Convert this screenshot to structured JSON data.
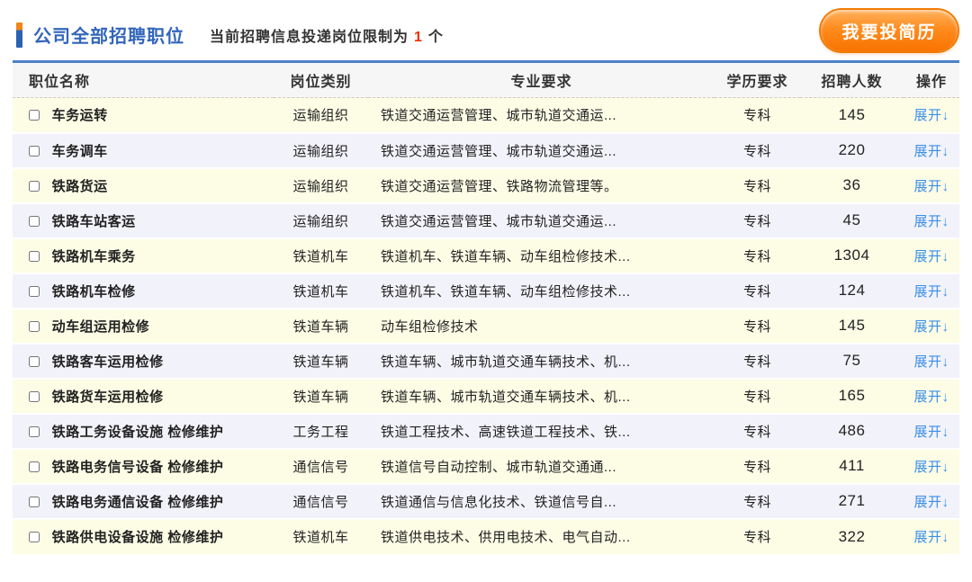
{
  "header": {
    "title": "公司全部招聘职位",
    "subtitle_prefix": "当前招聘信息投递岗位限制为",
    "subtitle_limit": "1",
    "subtitle_suffix": "个",
    "submit_button_label": "我要投简历"
  },
  "table": {
    "columns": [
      "职位名称",
      "岗位类别",
      "专业要求",
      "学历要求",
      "招聘人数",
      "操作"
    ],
    "expand_label": "展开↓",
    "rows": [
      {
        "name": "车务运转",
        "category": "运输组织",
        "majors": "铁道交通运营管理、城市轨道交通运...",
        "education": "专科",
        "count": "145"
      },
      {
        "name": "车务调车",
        "category": "运输组织",
        "majors": "铁道交通运营管理、城市轨道交通运...",
        "education": "专科",
        "count": "220"
      },
      {
        "name": "铁路货运",
        "category": "运输组织",
        "majors": "铁道交通运营管理、铁路物流管理等。",
        "education": "专科",
        "count": "36"
      },
      {
        "name": "铁路车站客运",
        "category": "运输组织",
        "majors": "铁道交通运营管理、城市轨道交通运...",
        "education": "专科",
        "count": "45"
      },
      {
        "name": "铁路机车乘务",
        "category": "铁道机车",
        "majors": "铁道机车、铁道车辆、动车组检修技术...",
        "education": "专科",
        "count": "1304"
      },
      {
        "name": "铁路机车检修",
        "category": "铁道机车",
        "majors": "铁道机车、铁道车辆、动车组检修技术...",
        "education": "专科",
        "count": "124"
      },
      {
        "name": "动车组运用检修",
        "category": "铁道车辆",
        "majors": "动车组检修技术",
        "education": "专科",
        "count": "145"
      },
      {
        "name": "铁路客车运用检修",
        "category": "铁道车辆",
        "majors": "铁道车辆、城市轨道交通车辆技术、机...",
        "education": "专科",
        "count": "75"
      },
      {
        "name": "铁路货车运用检修",
        "category": "铁道车辆",
        "majors": "铁道车辆、城市轨道交通车辆技术、机...",
        "education": "专科",
        "count": "165"
      },
      {
        "name": "铁路工务设备设施 检修维护",
        "category": "工务工程",
        "majors": "铁道工程技术、高速铁道工程技术、铁...",
        "education": "专科",
        "count": "486"
      },
      {
        "name": "铁路电务信号设备 检修维护",
        "category": "通信信号",
        "majors": "铁道信号自动控制、城市轨道交通通...",
        "education": "专科",
        "count": "411"
      },
      {
        "name": "铁路电务通信设备 检修维护",
        "category": "通信信号",
        "majors": "铁道通信与信息化技术、铁道信号自...",
        "education": "专科",
        "count": "271"
      },
      {
        "name": "铁路供电设备设施 检修维护",
        "category": "铁道机车",
        "majors": "铁道供电技术、供用电技术、电气自动...",
        "education": "专科",
        "count": "322"
      }
    ]
  },
  "colors": {
    "title_blue": "#3366bb",
    "accent_bar_blue": "#2b62b4",
    "accent_bar_orange": "#f08519",
    "limit_red": "#f03000",
    "button_orange": "#f87300",
    "table_top_border": "#4c82c8",
    "row_odd_bg": "#fdfde6",
    "row_even_bg": "#f2f2fa",
    "link_blue": "#3a8ee6"
  }
}
